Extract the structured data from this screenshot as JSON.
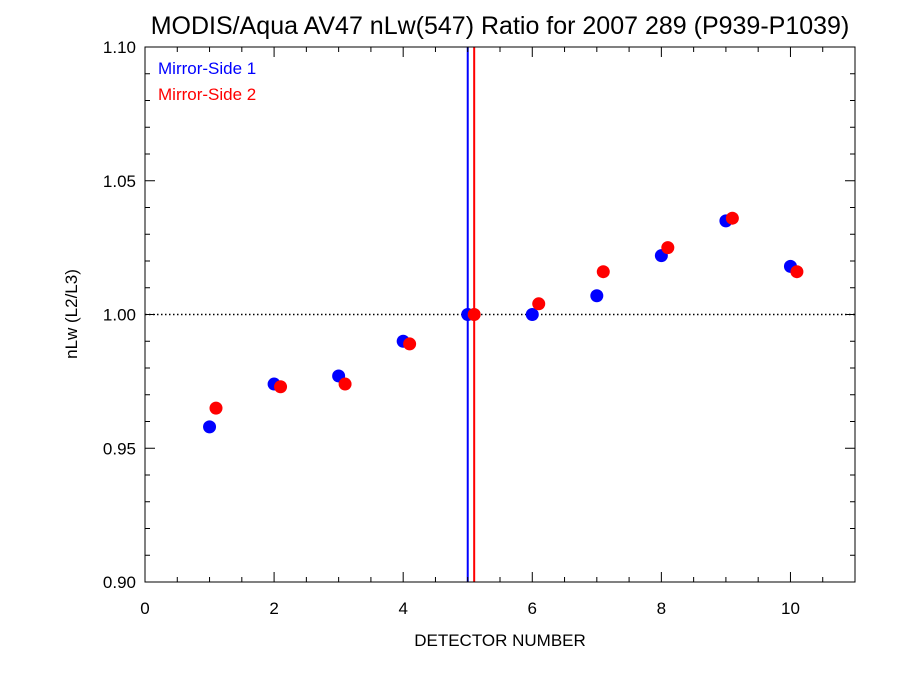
{
  "chart_data": {
    "type": "scatter",
    "title": "MODIS/Aqua AV47 nLw(547) Ratio for 2007 289 (P939-P1039)",
    "xlabel": "DETECTOR NUMBER",
    "ylabel": "nLw (L2/L3)",
    "xlim": [
      0,
      11
    ],
    "ylim": [
      0.9,
      1.1
    ],
    "x_ticks": [
      {
        "value": 0,
        "label": "0"
      },
      {
        "value": 2,
        "label": "2"
      },
      {
        "value": 4,
        "label": "4"
      },
      {
        "value": 6,
        "label": "6"
      },
      {
        "value": 8,
        "label": "8"
      },
      {
        "value": 10,
        "label": "10"
      }
    ],
    "y_ticks": [
      {
        "value": 0.9,
        "label": "0.90"
      },
      {
        "value": 0.95,
        "label": "0.95"
      },
      {
        "value": 1.0,
        "label": "1.00"
      },
      {
        "value": 1.05,
        "label": "1.05"
      },
      {
        "value": 1.1,
        "label": "1.10"
      }
    ],
    "legend_position": "top-left",
    "reference_line_y": 1.0,
    "series": [
      {
        "name": "Mirror-Side 1",
        "color": "#0000ff",
        "vline_x": 5.0,
        "points": [
          {
            "x": 1,
            "y": 0.958
          },
          {
            "x": 2,
            "y": 0.974
          },
          {
            "x": 3,
            "y": 0.977
          },
          {
            "x": 4,
            "y": 0.99
          },
          {
            "x": 5,
            "y": 1.0
          },
          {
            "x": 6,
            "y": 1.0
          },
          {
            "x": 7,
            "y": 1.007
          },
          {
            "x": 8,
            "y": 1.022
          },
          {
            "x": 9,
            "y": 1.035
          },
          {
            "x": 10,
            "y": 1.018
          }
        ]
      },
      {
        "name": "Mirror-Side 2",
        "color": "#ff0000",
        "vline_x": 5.1,
        "points": [
          {
            "x": 1.1,
            "y": 0.965
          },
          {
            "x": 2.1,
            "y": 0.973
          },
          {
            "x": 3.1,
            "y": 0.974
          },
          {
            "x": 4.1,
            "y": 0.989
          },
          {
            "x": 5.1,
            "y": 1.0
          },
          {
            "x": 6.1,
            "y": 1.004
          },
          {
            "x": 7.1,
            "y": 1.016
          },
          {
            "x": 8.1,
            "y": 1.025
          },
          {
            "x": 9.1,
            "y": 1.036
          },
          {
            "x": 10.1,
            "y": 1.016
          }
        ]
      }
    ]
  }
}
